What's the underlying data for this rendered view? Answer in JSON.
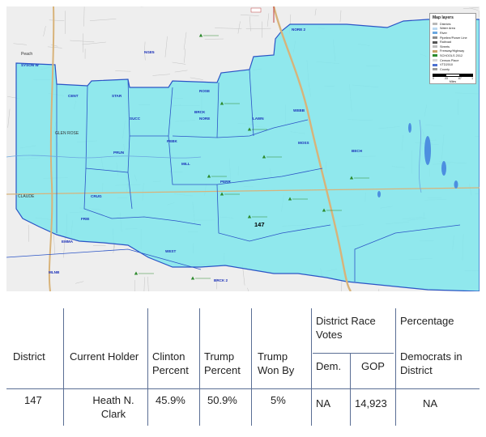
{
  "map": {
    "district_label": "147",
    "place_labels": [
      "Peach",
      "CLAUDE",
      "GLEN ROSE"
    ],
    "precinct_labels": [
      "SYSON W",
      "CENT",
      "SUCC",
      "PEBK",
      "ROSE",
      "NORE",
      "BECH",
      "PRUN",
      "MILL",
      "BRCK",
      "CRUG",
      "FRIE",
      "EMMA",
      "WEST",
      "MLNB",
      "NORE 2",
      "STAR",
      "PERR",
      "LAWN",
      "BRCK 2",
      "WEBB",
      "MOSS",
      "NGE5"
    ],
    "legend": {
      "title": "Map layers",
      "items": [
        {
          "label": "Districts",
          "color": "#b8b8b8"
        },
        {
          "label": "Water Area",
          "color": "#b9d7f0"
        },
        {
          "label": "River",
          "color": "#6aa7e0"
        },
        {
          "label": "Pipeline/Power Line",
          "color": "#8a8a8a"
        },
        {
          "label": "Railroad",
          "color": "#555555"
        },
        {
          "label": "Streets",
          "color": "#bdbdbd"
        },
        {
          "label": "Freeway/Highway",
          "color": "#c9a36a"
        },
        {
          "label": "SCHOOLS 2012",
          "color": "#2c8a2c"
        },
        {
          "label": "Census Place",
          "color": "#d6d6d6"
        },
        {
          "label": "VTD2010",
          "color": "#4c6fd0"
        },
        {
          "label": "County",
          "color": "#9a9a9a"
        }
      ],
      "scale_ticks": [
        "0",
        ".33",
        ".67",
        "1"
      ],
      "scale_unit": "Miles"
    }
  },
  "table": {
    "headers": {
      "district": "District",
      "holder": "Current Holder",
      "clinton": "Clinton Percent",
      "trump": "Trump Percent",
      "won_by": "Trump Won By",
      "race_votes": "District Race Votes",
      "dem": "Dem.",
      "gop": "GOP",
      "percentage": "Percentage",
      "democrats": "Democrats in District"
    },
    "row": {
      "district": "147",
      "holder": "Heath N. Clark",
      "clinton": "45.9%",
      "trump": "50.9%",
      "won_by": "5%",
      "dem": "NA",
      "gop": "14,923",
      "democrats": "NA"
    }
  }
}
